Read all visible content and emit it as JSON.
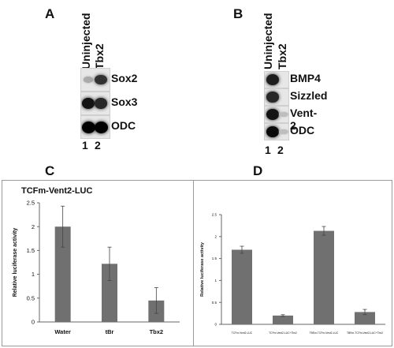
{
  "panels": {
    "a": {
      "letter": "A",
      "lanes": [
        "Uninjected",
        "Tbx2"
      ],
      "lane_numbers": [
        "1",
        "2"
      ],
      "rows": [
        {
          "label": "Sox2",
          "lane1": 0.15,
          "lane2": 0.75
        },
        {
          "label": "Sox3",
          "lane1": 0.9,
          "lane2": 0.8
        },
        {
          "label": "ODC",
          "lane1": 1.0,
          "lane2": 1.0
        }
      ]
    },
    "b": {
      "letter": "B",
      "lanes": [
        "Uninjected",
        "Tbx2"
      ],
      "lane_numbers": [
        "1",
        "2"
      ],
      "rows": [
        {
          "label": "BMP4",
          "lane1": 0.85,
          "lane2": 0.0
        },
        {
          "label": "Sizzled",
          "lane1": 0.8,
          "lane2": 0.0
        },
        {
          "label": "Vent-2",
          "lane1": 0.9,
          "lane2": 0.05
        },
        {
          "label": "ODC",
          "lane1": 0.95,
          "lane2": 0.05
        }
      ]
    },
    "c": {
      "letter": "C"
    },
    "d": {
      "letter": "D"
    }
  },
  "chart_data": [
    {
      "type": "bar",
      "title": "TCFm-Vent2-LUC",
      "ylabel": "Relative luciferase activity",
      "xlabel": "",
      "categories": [
        "Water",
        "tBr",
        "Tbx2"
      ],
      "values": [
        2.0,
        1.22,
        0.45
      ],
      "errors": [
        0.43,
        0.35,
        0.27
      ],
      "ylim": [
        0,
        2.5
      ],
      "yticks": [
        "0",
        "0.5",
        "1",
        "1.5",
        "2",
        "2.5"
      ],
      "bar_color": "#707070",
      "grid": false
    },
    {
      "type": "bar",
      "title": "",
      "ylabel": "Relative luciferase activity",
      "xlabel": "",
      "categories": [
        "TCFm-Vent2-LUC",
        "TCFm-Vent2-LUC+Tbx2",
        "TBEm-TCFm-Vent2-LUC",
        "TBEm-TCFm-Vent2-LUC+Tbx2"
      ],
      "values": [
        1.7,
        0.2,
        2.13,
        0.28
      ],
      "errors": [
        0.08,
        0.02,
        0.1,
        0.06
      ],
      "ylim": [
        0,
        2.5
      ],
      "yticks": [
        "0",
        "0.5",
        "1",
        "1.5",
        "2",
        "2.5"
      ],
      "bar_color": "#707070",
      "grid": false
    }
  ]
}
